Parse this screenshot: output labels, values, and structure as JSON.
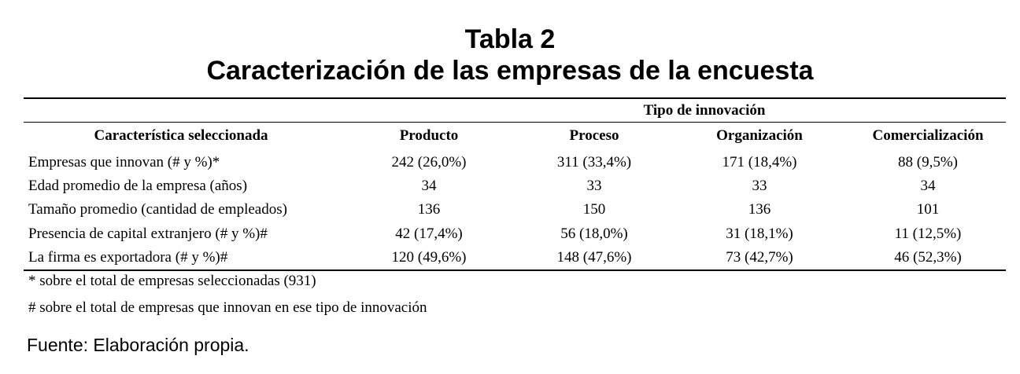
{
  "title": "Tabla 2",
  "subtitle": "Caracterización de las empresas de la encuesta",
  "table": {
    "group_header": "Tipo de innovación",
    "columns": [
      "Característica seleccionada",
      "Producto",
      "Proceso",
      "Organización",
      "Comercialización"
    ],
    "rows": [
      {
        "label": "Empresas que innovan (# y %)*",
        "values": [
          "242 (26,0%)",
          "311 (33,4%)",
          "171 (18,4%)",
          "88 (9,5%)"
        ]
      },
      {
        "label": "Edad promedio de la empresa (años)",
        "values": [
          "34",
          "33",
          "33",
          "34"
        ]
      },
      {
        "label": "Tamaño promedio (cantidad de empleados)",
        "values": [
          "136",
          "150",
          "136",
          "101"
        ]
      },
      {
        "label": "Presencia de capital extranjero (# y %)#",
        "values": [
          "42 (17,4%)",
          "56 (18,0%)",
          "31 (18,1%)",
          "11 (12,5%)"
        ]
      },
      {
        "label": "La firma es exportadora  (# y %)#",
        "values": [
          "120 (49,6%)",
          "148 (47,6%)",
          "73 (42,7%)",
          "46 (52,3%)"
        ]
      }
    ]
  },
  "notes": [
    "* sobre el total de empresas seleccionadas (931)",
    "# sobre el total de empresas que innovan en ese tipo de innovación"
  ],
  "source": "Fuente: Elaboración propia."
}
